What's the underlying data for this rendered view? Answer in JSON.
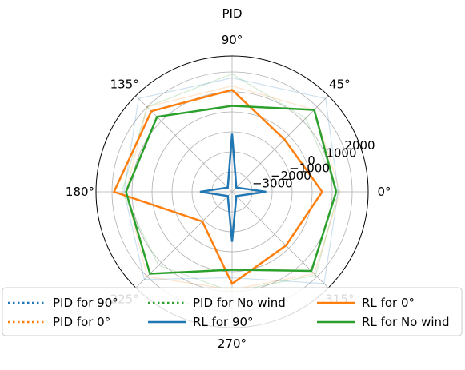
{
  "chart_data": {
    "type": "line",
    "projection": "polar",
    "title": "PID",
    "angle_ticks": [
      "0°",
      "45°",
      "90°",
      "135°",
      "180°",
      "225°",
      "270°",
      "315°"
    ],
    "angles_deg": [
      0,
      45,
      90,
      135,
      180,
      225,
      270,
      315
    ],
    "radial_ticks": [
      "−3000",
      "−2000",
      "−1000",
      "0",
      "1000",
      "2000"
    ],
    "radial_tick_values": [
      -3000,
      -2000,
      -1000,
      0,
      1000,
      2000
    ],
    "rlim": [
      -4000,
      2800
    ],
    "grid": true,
    "legend_position": "bottom",
    "series": [
      {
        "name": "PID for 90°",
        "style": "dotted",
        "color": "#1f77b4",
        "values": [
          1300,
          2600,
          1700,
          2600,
          1400,
          2200,
          300,
          2500
        ]
      },
      {
        "name": "PID for 0°",
        "style": "dotted",
        "color": "#ff7f0e",
        "values": [
          1400,
          1800,
          1300,
          2000,
          1300,
          2000,
          900,
          1800
        ]
      },
      {
        "name": "PID for No wind",
        "style": "dotted",
        "color": "#2ca02c",
        "values": [
          1300,
          1200,
          1900,
          2000,
          1500,
          1200,
          1000,
          1900
        ]
      },
      {
        "name": "RL for 90°",
        "style": "solid",
        "color": "#1f77b4",
        "values": [
          -2300,
          -3700,
          -1100,
          -3700,
          -2400,
          -3700,
          -1500,
          -3700
        ]
      },
      {
        "name": "RL for 0°",
        "style": "solid",
        "color": "#ff7f0e",
        "values": [
          500,
          -300,
          1100,
          1700,
          1900,
          -1900,
          600,
          -200
        ]
      },
      {
        "name": "RL for No wind",
        "style": "solid",
        "color": "#2ca02c",
        "values": [
          1200,
          1800,
          300,
          1300,
          1300,
          1800,
          -100,
          1600
        ]
      }
    ]
  }
}
